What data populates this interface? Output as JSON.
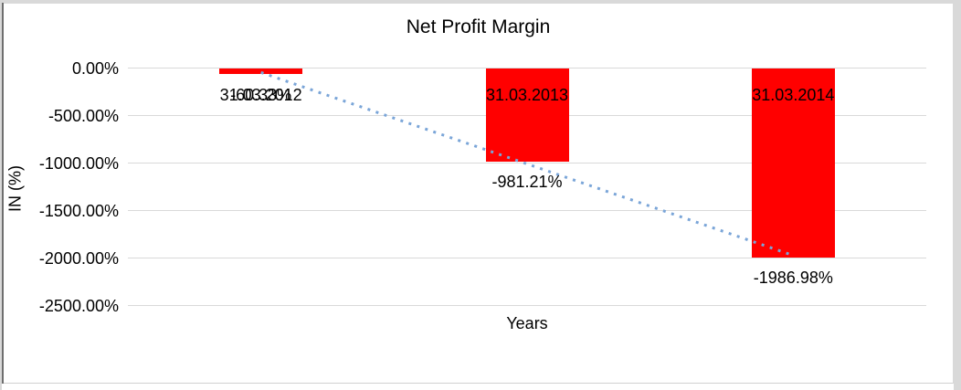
{
  "chart_data": {
    "type": "bar",
    "title": "Net Profit Margin",
    "categories": [
      "31.03.2012",
      "31.03.2013",
      "31.03.2014"
    ],
    "values": [
      -60.33,
      -981.21,
      -1986.98
    ],
    "data_labels": [
      "-60.33%",
      "-981.21%",
      "-1986.98%"
    ],
    "xlabel": "Years",
    "ylabel": "IN (%)",
    "ylim": [
      -2500,
      0
    ],
    "yticks": [
      "0.00%",
      "-500.00%",
      "-1000.00%",
      "-1500.00%",
      "-2000.00%",
      "-2500.00%"
    ],
    "grid": true,
    "legend": false,
    "bar_color": "#ff0000",
    "gridline_color": "#d9d9d9",
    "text_color": "#000000",
    "trendline": {
      "type": "linear",
      "style": "dotted",
      "color": "#7aa5d8"
    }
  }
}
